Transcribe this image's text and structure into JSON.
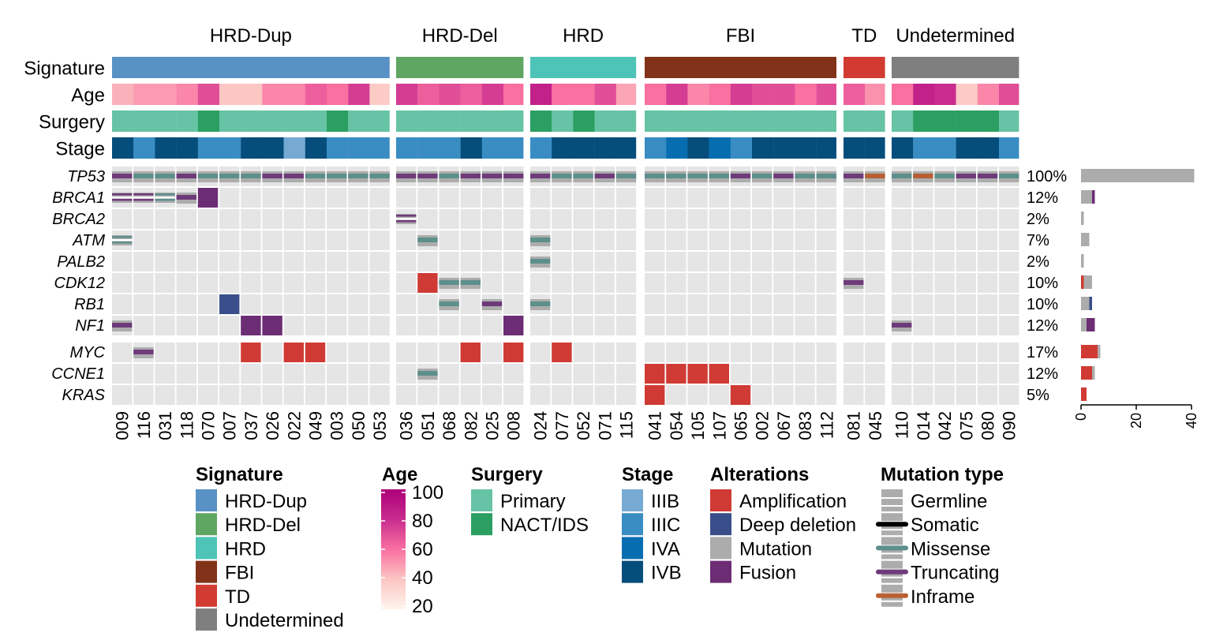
{
  "chart_data": {
    "type": "heatmap",
    "title": "",
    "groups": [
      {
        "name": "HRD-Dup",
        "signature_color": "#5891c4",
        "samples": [
          "009",
          "116",
          "031",
          "118",
          "070",
          "007",
          "037",
          "026",
          "022",
          "049",
          "003",
          "050",
          "053"
        ],
        "age": [
          45,
          50,
          50,
          55,
          70,
          40,
          40,
          55,
          55,
          65,
          60,
          75,
          38
        ],
        "surgery": [
          "Primary",
          "Primary",
          "Primary",
          "Primary",
          "NACT/IDS",
          "Primary",
          "Primary",
          "Primary",
          "Primary",
          "Primary",
          "NACT/IDS",
          "Primary",
          "Primary"
        ],
        "stage": [
          "IVB",
          "IIIC",
          "IVB",
          "IVB",
          "IIIC",
          "IIIC",
          "IVB",
          "IVB",
          "IIIB",
          "IVB",
          "IIIC",
          "IIIC",
          "IIIC"
        ]
      },
      {
        "name": "HRD-Del",
        "signature_color": "#60a663",
        "samples": [
          "036",
          "051",
          "068",
          "082",
          "025",
          "008"
        ],
        "age": [
          75,
          65,
          70,
          65,
          75,
          60
        ],
        "surgery": [
          "Primary",
          "Primary",
          "Primary",
          "Primary",
          "Primary",
          "Primary"
        ],
        "stage": [
          "IIIC",
          "IIIC",
          "IIIC",
          "IVB",
          "IIIC",
          "IIIC"
        ]
      },
      {
        "name": "HRD",
        "signature_color": "#4ec3b8",
        "samples": [
          "024",
          "077",
          "052",
          "071",
          "115"
        ],
        "age": [
          85,
          60,
          60,
          70,
          48
        ],
        "surgery": [
          "NACT/IDS",
          "Primary",
          "NACT/IDS",
          "Primary",
          "Primary"
        ],
        "stage": [
          "IIIC",
          "IVB",
          "IVB",
          "IVB",
          "IVB"
        ]
      },
      {
        "name": "FBI",
        "signature_color": "#83321a",
        "samples": [
          "041",
          "054",
          "105",
          "107",
          "065",
          "002",
          "067",
          "083",
          "112"
        ],
        "age": [
          60,
          75,
          55,
          60,
          75,
          70,
          70,
          60,
          70
        ],
        "surgery": [
          "Primary",
          "Primary",
          "Primary",
          "Primary",
          "Primary",
          "Primary",
          "Primary",
          "Primary",
          "Primary"
        ],
        "stage": [
          "IIIC",
          "IVA",
          "IVB",
          "IVA",
          "IIIC",
          "IVB",
          "IVB",
          "IVB",
          "IVB"
        ]
      },
      {
        "name": "TD",
        "signature_color": "#d13b31",
        "samples": [
          "081",
          "045"
        ],
        "age": [
          65,
          52
        ],
        "surgery": [
          "Primary",
          "Primary"
        ],
        "stage": [
          "IVB",
          "IVB"
        ]
      },
      {
        "name": "Undetermined",
        "signature_color": "#7f7f7f",
        "samples": [
          "110",
          "014",
          "042",
          "075",
          "080",
          "090"
        ],
        "age": [
          60,
          85,
          80,
          38,
          55,
          70
        ],
        "surgery": [
          "Primary",
          "NACT/IDS",
          "NACT/IDS",
          "NACT/IDS",
          "NACT/IDS",
          "Primary"
        ],
        "stage": [
          "IVB",
          "IIIC",
          "IIIC",
          "IVB",
          "IVB",
          "IIIC"
        ]
      }
    ],
    "annotation_labels": [
      "Signature",
      "Age",
      "Surgery",
      "Stage"
    ],
    "genes": [
      "TP53",
      "BRCA1",
      "BRCA2",
      "ATM",
      "PALB2",
      "CDK12",
      "RB1",
      "NF1",
      "MYC",
      "CCNE1",
      "KRAS"
    ],
    "gene_percentages": [
      "100%",
      "12%",
      "2%",
      "7%",
      "2%",
      "10%",
      "10%",
      "12%",
      "17%",
      "12%",
      "5%"
    ],
    "tp53_lines": [
      [
        "Truncating",
        "Missense",
        "Missense",
        "Truncating",
        "Missense",
        "Missense",
        "Missense",
        "Truncating",
        "Truncating",
        "Missense",
        "Missense",
        "Missense",
        "Missense"
      ],
      [
        "Truncating",
        "Truncating",
        "Missense",
        "Truncating",
        "Truncating",
        "Truncating"
      ],
      [
        "Truncating",
        "Missense",
        "Missense",
        "Truncating",
        "Missense"
      ],
      [
        "Missense",
        "Missense",
        "Missense",
        "Missense",
        "Truncating",
        "Missense",
        "Truncating",
        "Missense",
        "Missense"
      ],
      [
        "Truncating",
        "Inframe"
      ],
      [
        "Missense",
        "Inframe",
        "Missense",
        "Truncating",
        "Truncating",
        "Missense"
      ]
    ],
    "alterations": [
      {
        "gene": "BRCA1",
        "sample": "009",
        "kind": "germline-lines",
        "line": "Truncating"
      },
      {
        "gene": "BRCA1",
        "sample": "116",
        "kind": "germline-lines",
        "line": "Truncating"
      },
      {
        "gene": "BRCA1",
        "sample": "031",
        "kind": "germline-lines",
        "line": "Missense"
      },
      {
        "gene": "BRCA1",
        "sample": "118",
        "kind": "mutation",
        "line": "Truncating"
      },
      {
        "gene": "BRCA1",
        "sample": "070",
        "kind": "Fusion"
      },
      {
        "gene": "BRCA2",
        "sample": "036",
        "kind": "germline-lines",
        "line": "Truncating"
      },
      {
        "gene": "ATM",
        "sample": "009",
        "kind": "germline-lines",
        "line": "Missense"
      },
      {
        "gene": "ATM",
        "sample": "051",
        "kind": "mutation",
        "line": "Missense"
      },
      {
        "gene": "ATM",
        "sample": "024",
        "kind": "mutation",
        "line": "Missense"
      },
      {
        "gene": "PALB2",
        "sample": "024",
        "kind": "mutation",
        "line": "Missense"
      },
      {
        "gene": "CDK12",
        "sample": "051",
        "kind": "Amplification"
      },
      {
        "gene": "CDK12",
        "sample": "068",
        "kind": "mutation",
        "line": "Missense"
      },
      {
        "gene": "CDK12",
        "sample": "082",
        "kind": "mutation",
        "line": "Missense"
      },
      {
        "gene": "CDK12",
        "sample": "081",
        "kind": "mutation",
        "line": "Truncating"
      },
      {
        "gene": "RB1",
        "sample": "007",
        "kind": "Deep deletion"
      },
      {
        "gene": "RB1",
        "sample": "068",
        "kind": "mutation",
        "line": "Missense"
      },
      {
        "gene": "RB1",
        "sample": "025",
        "kind": "mutation",
        "line": "Truncating"
      },
      {
        "gene": "RB1",
        "sample": "024",
        "kind": "mutation",
        "line": "Missense"
      },
      {
        "gene": "NF1",
        "sample": "009",
        "kind": "mutation",
        "line": "Truncating"
      },
      {
        "gene": "NF1",
        "sample": "037",
        "kind": "Fusion"
      },
      {
        "gene": "NF1",
        "sample": "026",
        "kind": "Fusion"
      },
      {
        "gene": "NF1",
        "sample": "008",
        "kind": "Fusion"
      },
      {
        "gene": "NF1",
        "sample": "110",
        "kind": "mutation",
        "line": "Truncating"
      },
      {
        "gene": "MYC",
        "sample": "116",
        "kind": "mutation",
        "line": "Truncating"
      },
      {
        "gene": "MYC",
        "sample": "037",
        "kind": "Amplification"
      },
      {
        "gene": "MYC",
        "sample": "022",
        "kind": "Amplification"
      },
      {
        "gene": "MYC",
        "sample": "049",
        "kind": "Amplification"
      },
      {
        "gene": "MYC",
        "sample": "082",
        "kind": "Amplification"
      },
      {
        "gene": "MYC",
        "sample": "008",
        "kind": "Amplification"
      },
      {
        "gene": "MYC",
        "sample": "077",
        "kind": "Amplification"
      },
      {
        "gene": "CCNE1",
        "sample": "051",
        "kind": "mutation",
        "line": "Missense"
      },
      {
        "gene": "CCNE1",
        "sample": "041",
        "kind": "Amplification"
      },
      {
        "gene": "CCNE1",
        "sample": "054",
        "kind": "Amplification"
      },
      {
        "gene": "CCNE1",
        "sample": "105",
        "kind": "Amplification"
      },
      {
        "gene": "CCNE1",
        "sample": "107",
        "kind": "Amplification"
      },
      {
        "gene": "KRAS",
        "sample": "041",
        "kind": "Amplification"
      },
      {
        "gene": "KRAS",
        "sample": "065",
        "kind": "Amplification"
      }
    ],
    "bar_data": [
      {
        "gene": "TP53",
        "segments": [
          {
            "type": "Mutation",
            "value": 41
          }
        ]
      },
      {
        "gene": "BRCA1",
        "segments": [
          {
            "type": "Mutation",
            "value": 4
          },
          {
            "type": "Fusion",
            "value": 1
          }
        ]
      },
      {
        "gene": "BRCA2",
        "segments": [
          {
            "type": "Mutation",
            "value": 1
          }
        ]
      },
      {
        "gene": "ATM",
        "segments": [
          {
            "type": "Mutation",
            "value": 3
          }
        ]
      },
      {
        "gene": "PALB2",
        "segments": [
          {
            "type": "Mutation",
            "value": 1
          }
        ]
      },
      {
        "gene": "CDK12",
        "segments": [
          {
            "type": "Amplification",
            "value": 1
          },
          {
            "type": "Mutation",
            "value": 3
          }
        ]
      },
      {
        "gene": "RB1",
        "segments": [
          {
            "type": "Mutation",
            "value": 3
          },
          {
            "type": "Deep deletion",
            "value": 1
          }
        ]
      },
      {
        "gene": "NF1",
        "segments": [
          {
            "type": "Mutation",
            "value": 2
          },
          {
            "type": "Fusion",
            "value": 3
          }
        ]
      },
      {
        "gene": "MYC",
        "segments": [
          {
            "type": "Amplification",
            "value": 6
          },
          {
            "type": "Mutation",
            "value": 1
          }
        ]
      },
      {
        "gene": "CCNE1",
        "segments": [
          {
            "type": "Amplification",
            "value": 4
          },
          {
            "type": "Mutation",
            "value": 1
          }
        ]
      },
      {
        "gene": "KRAS",
        "segments": [
          {
            "type": "Amplification",
            "value": 2
          }
        ]
      }
    ],
    "bar_axis": {
      "xlim": [
        0,
        42
      ],
      "ticks": [
        "0",
        "20",
        "40"
      ]
    },
    "colors": {
      "background_cell": "#e5e5e5",
      "Amplification": "#cf3b34",
      "Deep deletion": "#394e8a",
      "Mutation": "#acacac",
      "Fusion": "#6c2d74",
      "Germline": "#acacac",
      "Somatic": "#000000",
      "Missense": "#5d8f8b",
      "Truncating": "#6e3a7a",
      "Inframe": "#b86032",
      "Primary": "#67c3a5",
      "NACT/IDS": "#2b9f62",
      "IIIB": "#76aad3",
      "IIIC": "#3a8dc3",
      "IVA": "#056db0",
      "IVB": "#054d7b"
    },
    "age_scale": {
      "min": 20,
      "max": 100,
      "ticks": [
        "20",
        "40",
        "60",
        "80",
        "100"
      ],
      "stops": [
        "#fff4ed",
        "#fcc6c2",
        "#f970a1",
        "#c92c8e",
        "#ad0079"
      ]
    },
    "legends": {
      "signature": {
        "title": "Signature",
        "entries": [
          "HRD-Dup",
          "HRD-Del",
          "HRD",
          "FBI",
          "TD",
          "Undetermined"
        ]
      },
      "age": {
        "title": "Age"
      },
      "surgery": {
        "title": "Surgery",
        "entries": [
          "Primary",
          "NACT/IDS"
        ]
      },
      "stage": {
        "title": "Stage",
        "entries": [
          "IIIB",
          "IIIC",
          "IVA",
          "IVB"
        ]
      },
      "alterations": {
        "title": "Alterations",
        "entries": [
          "Amplification",
          "Deep deletion",
          "Mutation",
          "Fusion"
        ]
      },
      "mutation_type": {
        "title": "Mutation type",
        "entries": [
          "Germline",
          "Somatic",
          "Missense",
          "Truncating",
          "Inframe"
        ]
      }
    }
  }
}
